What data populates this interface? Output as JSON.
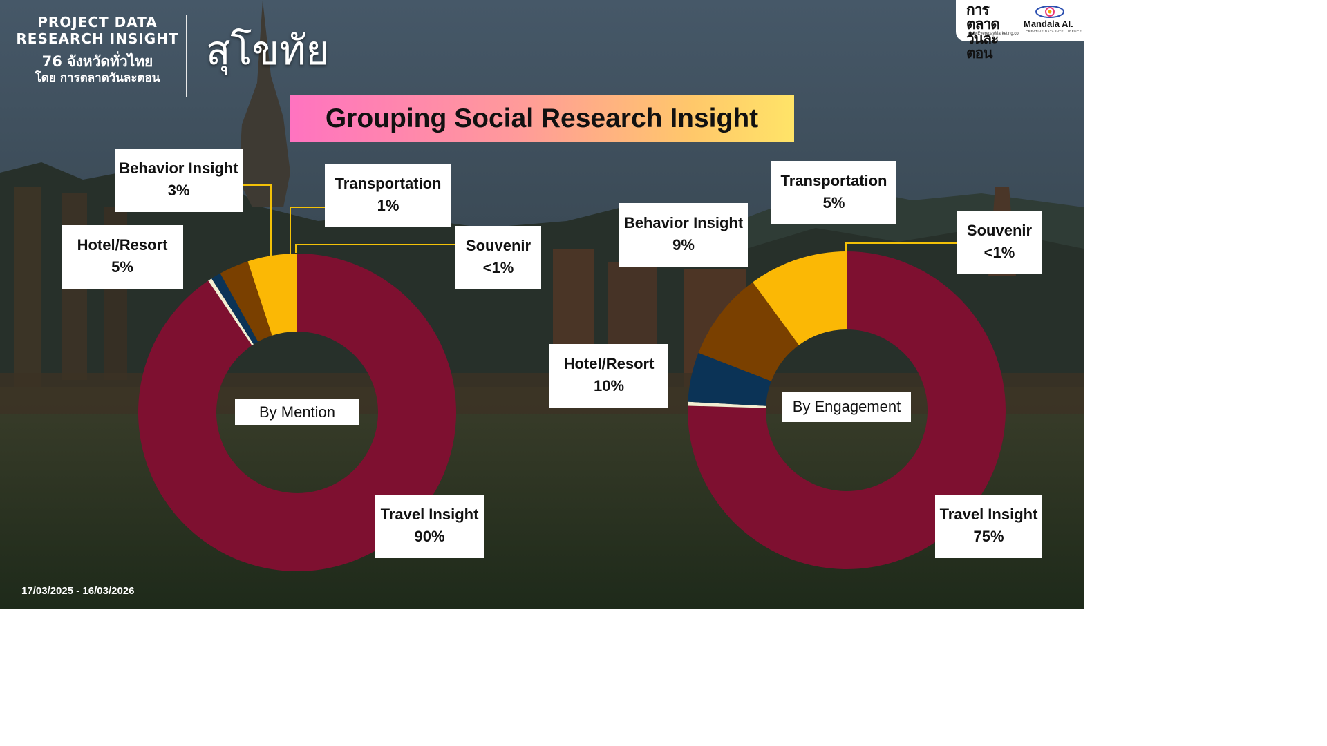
{
  "header": {
    "line1": "PROJECT DATA",
    "line2": "RESEARCH INSIGHT",
    "line3": "76 จังหวัดทั่วไทย",
    "line4": "โดย การตลาดวันละตอน"
  },
  "province": "สุโขทัย",
  "title": "Grouping Social Research Insight",
  "date_range": "17/03/2025 - 16/03/2026",
  "logos": {
    "brand1_line1": "การตลาด",
    "brand1_line2": "วันละตอน",
    "brand1_sub": "www.EverydayMarketing.co",
    "brand2": "Mandala AI.",
    "brand2_sub": "CREATIVE DATA INTELLIGENCE"
  },
  "colors": {
    "travel": "#7e1030",
    "hotel": "#fbb805",
    "behavior": "#7a4000",
    "transportation": "#0b3356",
    "souvenir": "#f3eed2",
    "leader": "#f3c108"
  },
  "chart_data": [
    {
      "type": "pie",
      "center_label": "By Mention",
      "slices": [
        {
          "name": "Travel Insight",
          "value": 90,
          "label": "90%",
          "color": "#7e1030"
        },
        {
          "name": "Hotel/Resort",
          "value": 5,
          "label": "5%",
          "color": "#fbb805"
        },
        {
          "name": "Behavior Insight",
          "value": 3,
          "label": "3%",
          "color": "#7a4000"
        },
        {
          "name": "Transportation",
          "value": 1,
          "label": "1%",
          "color": "#0b3356"
        },
        {
          "name": "Souvenir",
          "value": 0.4,
          "label": "<1%",
          "color": "#f3eed2"
        }
      ]
    },
    {
      "type": "pie",
      "center_label": "By Engagement",
      "slices": [
        {
          "name": "Travel Insight",
          "value": 75,
          "label": "75%",
          "color": "#7e1030"
        },
        {
          "name": "Hotel/Resort",
          "value": 10,
          "label": "10%",
          "color": "#fbb805"
        },
        {
          "name": "Behavior Insight",
          "value": 9,
          "label": "9%",
          "color": "#7a4000"
        },
        {
          "name": "Transportation",
          "value": 5,
          "label": "5%",
          "color": "#0b3356"
        },
        {
          "name": "Souvenir",
          "value": 0.4,
          "label": "<1%",
          "color": "#f3eed2"
        }
      ]
    }
  ]
}
